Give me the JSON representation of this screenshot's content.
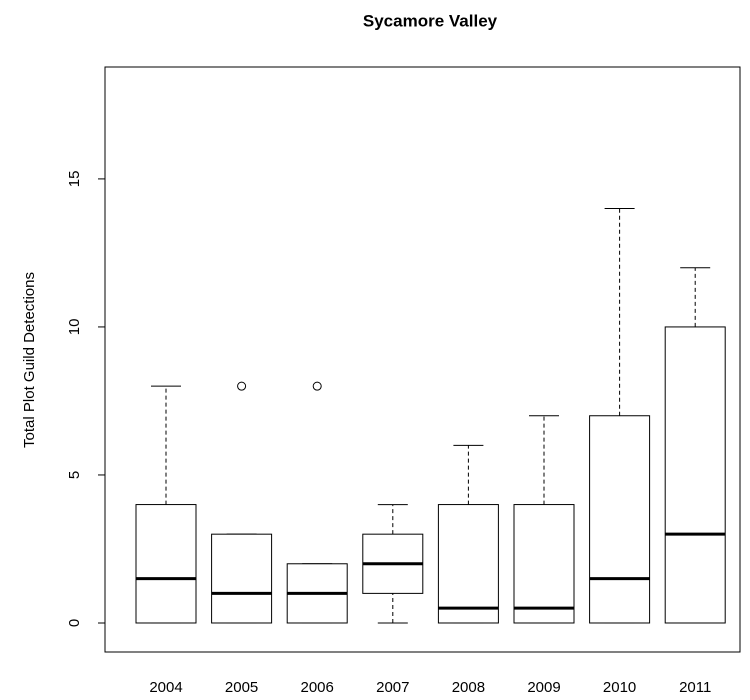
{
  "chart_data": {
    "type": "box",
    "title": "Sycamore Valley",
    "y_label": "Total Plot Guild Detections",
    "categories": [
      "2004",
      "2005",
      "2006",
      "2007",
      "2008",
      "2009",
      "2010",
      "2011"
    ],
    "boxes": [
      {
        "min": 0,
        "q1": 0,
        "median": 1.5,
        "q3": 4,
        "max": 8,
        "outliers": []
      },
      {
        "min": 0,
        "q1": 0,
        "median": 1,
        "q3": 3,
        "max": 3,
        "outliers": [
          8
        ]
      },
      {
        "min": 0,
        "q1": 0,
        "median": 1,
        "q3": 2,
        "max": 2,
        "outliers": [
          8
        ]
      },
      {
        "min": 0,
        "q1": 1,
        "median": 2,
        "q3": 3,
        "max": 4,
        "outliers": []
      },
      {
        "min": 0,
        "q1": 0,
        "median": 0.5,
        "q3": 4,
        "max": 6,
        "outliers": []
      },
      {
        "min": 0,
        "q1": 0,
        "median": 0.5,
        "q3": 4,
        "max": 7,
        "outliers": []
      },
      {
        "min": 0,
        "q1": 0,
        "median": 1.5,
        "q3": 7,
        "max": 14,
        "outliers": []
      },
      {
        "min": 0,
        "q1": 0,
        "median": 3,
        "q3": 10,
        "max": 12,
        "outliers": []
      }
    ],
    "color": "#000000",
    "ylim": [
      -0.98,
      18.78
    ],
    "yticks": [
      0,
      5,
      10,
      15
    ]
  }
}
